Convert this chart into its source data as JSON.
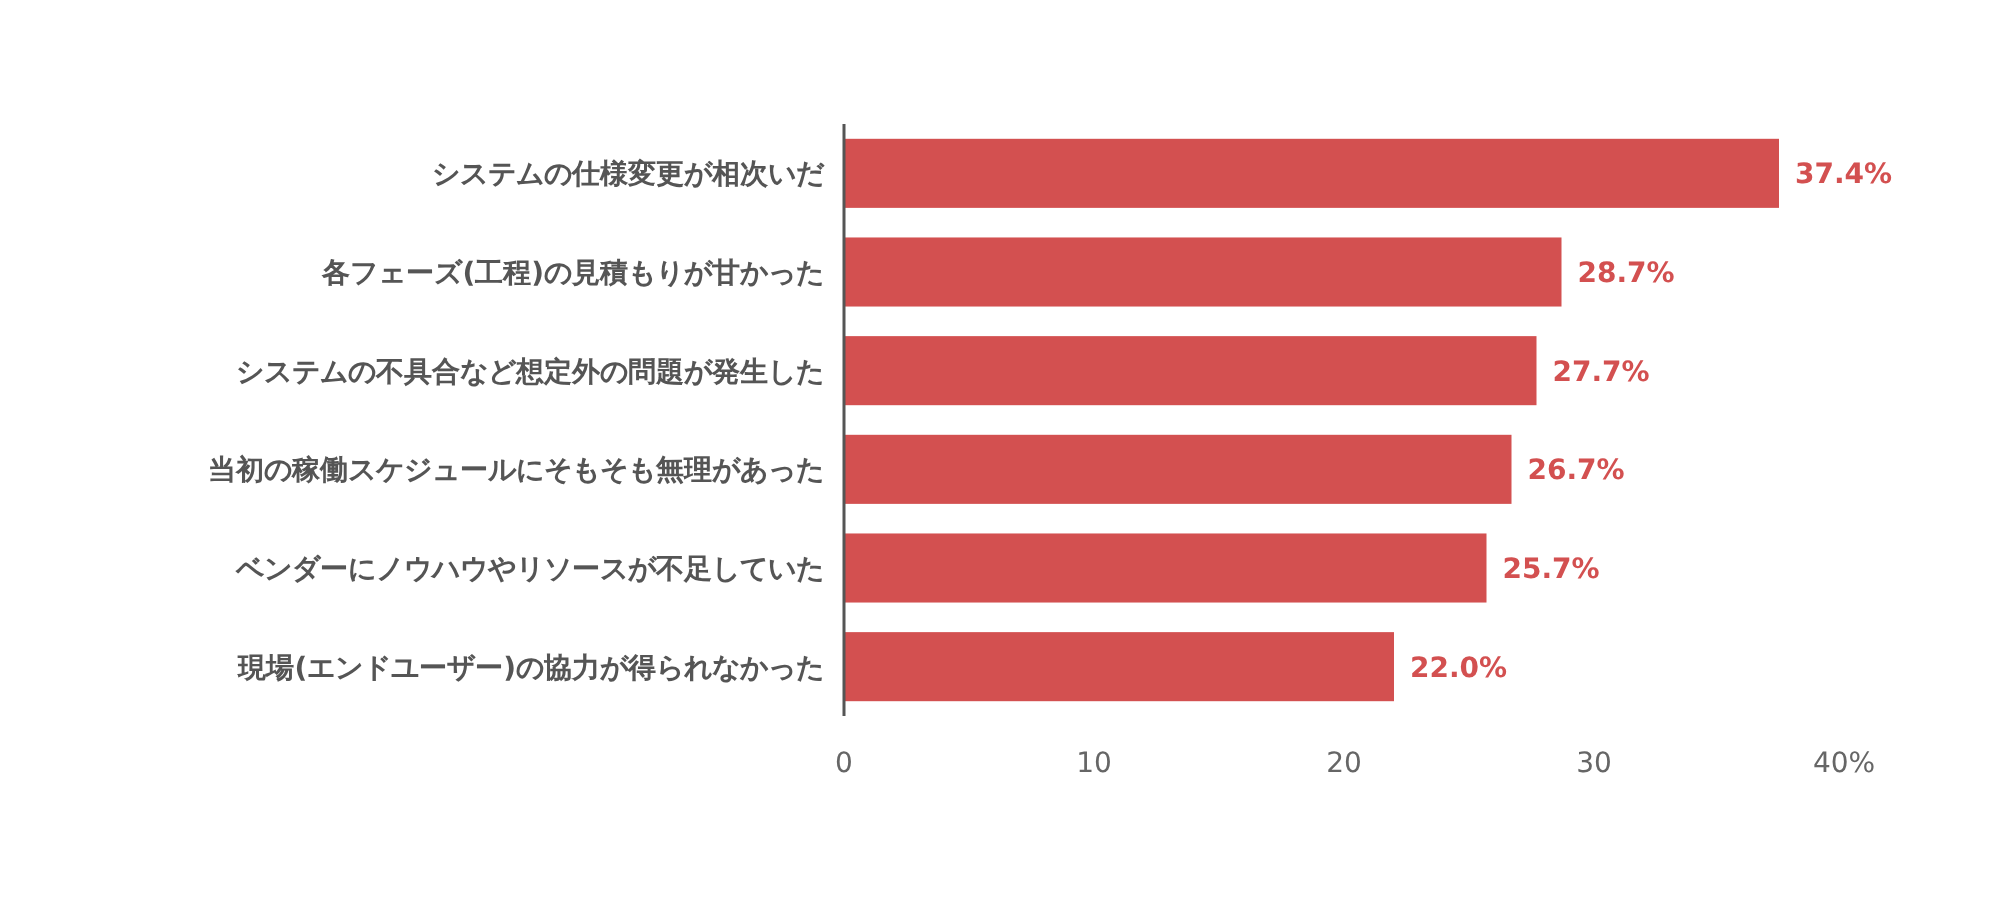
{
  "chart_data": {
    "type": "bar",
    "orientation": "horizontal",
    "categories": [
      "システムの仕様変更が相次いだ",
      "各フェーズ(工程)の見積もりが甘かった",
      "システムの不具合など想定外の問題が発生した",
      "当初の稼働スケジュールにそもそも無理があった",
      "ベンダーにノウハウやリソースが不足していた",
      "現場(エンドユーザー)の協力が得られなかった"
    ],
    "values": [
      37.4,
      28.7,
      27.7,
      26.7,
      25.7,
      22.0
    ],
    "value_labels": [
      "37.4%",
      "28.7%",
      "27.7%",
      "26.7%",
      "25.7%",
      "22.0%"
    ],
    "color": "#d35050",
    "xlim": [
      0,
      40
    ],
    "xticks": [
      0,
      10,
      20,
      30,
      {
        "value": 40,
        "label": "40%"
      }
    ]
  }
}
